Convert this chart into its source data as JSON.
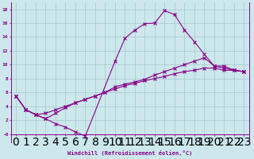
{
  "xlabel": "Windchill (Refroidissement éolien,°C)",
  "background_color": "#cce8ec",
  "line_color": "#880088",
  "xlim": [
    -0.5,
    23.5
  ],
  "ylim": [
    -1.2,
    19
  ],
  "xticks": [
    0,
    1,
    2,
    3,
    4,
    5,
    6,
    7,
    8,
    9,
    10,
    11,
    12,
    13,
    14,
    15,
    16,
    17,
    18,
    19,
    20,
    21,
    22,
    23
  ],
  "yticks": [
    0,
    2,
    4,
    6,
    8,
    10,
    12,
    14,
    16,
    18
  ],
  "ytick_labels": [
    "-0",
    "2",
    "4",
    "6",
    "8",
    "10",
    "12",
    "14",
    "16",
    "18"
  ],
  "line1_x": [
    0,
    1,
    2,
    3,
    4,
    5,
    6,
    7,
    10,
    11,
    12,
    13,
    14,
    15,
    16,
    17,
    18,
    19,
    20,
    21,
    22,
    23
  ],
  "line1_y": [
    5.5,
    3.5,
    2.8,
    2.2,
    1.5,
    1.0,
    0.3,
    -0.3,
    10.5,
    13.8,
    15.0,
    15.9,
    16.0,
    17.8,
    17.2,
    15.0,
    13.3,
    11.5,
    9.8,
    9.8,
    9.2,
    9.0
  ],
  "line2_x": [
    0,
    1,
    2,
    3,
    4,
    5,
    6,
    7,
    8,
    9,
    10,
    11,
    12,
    13,
    14,
    15,
    16,
    17,
    18,
    19,
    20,
    21,
    22,
    23
  ],
  "line2_y": [
    5.5,
    3.5,
    2.8,
    3.0,
    3.5,
    4.0,
    4.5,
    5.0,
    5.5,
    6.0,
    6.5,
    7.0,
    7.3,
    7.7,
    8.0,
    8.3,
    8.7,
    9.0,
    9.2,
    9.5,
    9.5,
    9.2,
    9.2,
    9.0
  ],
  "line3_x": [
    0,
    1,
    2,
    3,
    4,
    5,
    6,
    7,
    8,
    9,
    10,
    11,
    12,
    13,
    14,
    15,
    16,
    17,
    18,
    19,
    20,
    21,
    22,
    23
  ],
  "line3_y": [
    5.5,
    3.5,
    2.8,
    2.2,
    3.0,
    3.8,
    4.5,
    5.0,
    5.5,
    6.0,
    6.8,
    7.2,
    7.5,
    7.9,
    8.5,
    9.0,
    9.5,
    10.0,
    10.5,
    11.0,
    9.8,
    9.5,
    9.2,
    9.0
  ]
}
